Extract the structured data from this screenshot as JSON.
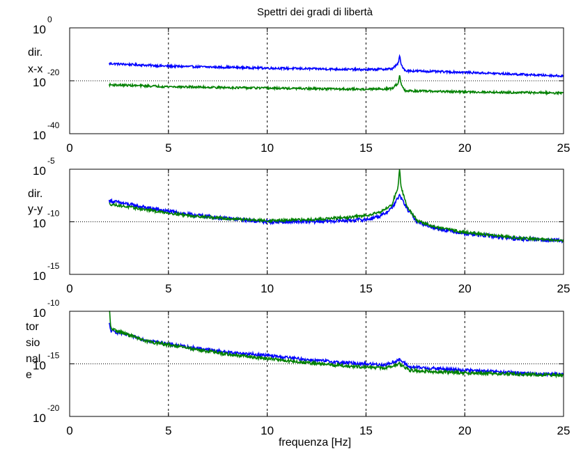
{
  "chart_data": {
    "title": "Spettri dei gradi di libertà",
    "xlabel": "frequenza [Hz]",
    "colors": {
      "blue": "#0000ff",
      "green": "#008000",
      "axes": "#000000"
    },
    "panels": [
      {
        "type": "line",
        "yscale": "log",
        "ylabel_lines": [
          "dir.",
          "x-x"
        ],
        "xlim": [
          0,
          25
        ],
        "xticks": [
          "0",
          "5",
          "10",
          "15",
          "20",
          "25"
        ],
        "ylim_exp": [
          -40,
          0
        ],
        "yticks": [
          {
            "base": "10",
            "exp": "0"
          },
          {
            "base": "10",
            "exp": "-20"
          },
          {
            "base": "10",
            "exp": "-40"
          }
        ],
        "vertical_grid_x": [
          5,
          10,
          15,
          20
        ],
        "horizontal_grid_exp": [
          -20
        ],
        "series": [
          {
            "color": "blue",
            "noise": 0.8,
            "peak_height": 2.5,
            "points": [
              [
                2,
                -13.5
              ],
              [
                5,
                -14.5
              ],
              [
                10,
                -15.2
              ],
              [
                15,
                -15.8
              ],
              [
                16.3,
                -15.5
              ],
              [
                16.7,
                -13.2
              ],
              [
                17.0,
                -16.2
              ],
              [
                20,
                -16.8
              ],
              [
                25,
                -18.2
              ]
            ]
          },
          {
            "color": "green",
            "noise": 0.8,
            "peak_height": 2.5,
            "points": [
              [
                2,
                -21.5
              ],
              [
                5,
                -22.2
              ],
              [
                10,
                -22.8
              ],
              [
                15,
                -23.2
              ],
              [
                16.3,
                -23.0
              ],
              [
                16.7,
                -20.5
              ],
              [
                17.0,
                -23.8
              ],
              [
                20,
                -24.2
              ],
              [
                25,
                -24.6
              ]
            ]
          }
        ]
      },
      {
        "type": "line",
        "yscale": "log",
        "ylabel_lines": [
          "dir.",
          "y-y"
        ],
        "xlim": [
          0,
          25
        ],
        "xticks": [
          "0",
          "5",
          "10",
          "15",
          "20",
          "25"
        ],
        "ylim_exp": [
          -15,
          -5
        ],
        "yticks": [
          {
            "base": "10",
            "exp": "-5"
          },
          {
            "base": "10",
            "exp": "-10"
          },
          {
            "base": "10",
            "exp": "-15"
          }
        ],
        "vertical_grid_x": [
          5,
          10,
          15,
          20
        ],
        "horizontal_grid_exp": [
          -10
        ],
        "series": [
          {
            "color": "blue",
            "noise": 0.35,
            "peak_height": 0,
            "points": [
              [
                2,
                -8.0
              ],
              [
                4,
                -8.7
              ],
              [
                6,
                -9.3
              ],
              [
                8,
                -9.7
              ],
              [
                10,
                -10.0
              ],
              [
                12,
                -10.0
              ],
              [
                13.5,
                -9.9
              ],
              [
                15,
                -9.8
              ],
              [
                15.8,
                -9.4
              ],
              [
                16.3,
                -8.7
              ],
              [
                16.7,
                -7.5
              ],
              [
                17.1,
                -8.8
              ],
              [
                17.6,
                -10.0
              ],
              [
                18.5,
                -10.6
              ],
              [
                20,
                -11.1
              ],
              [
                22.5,
                -11.6
              ],
              [
                25,
                -11.8
              ]
            ]
          },
          {
            "color": "green",
            "noise": 0.25,
            "peak_height": 1.3,
            "points": [
              [
                2,
                -8.3
              ],
              [
                4,
                -8.9
              ],
              [
                6,
                -9.4
              ],
              [
                8,
                -9.7
              ],
              [
                10,
                -9.9
              ],
              [
                12,
                -9.8
              ],
              [
                14,
                -9.6
              ],
              [
                15,
                -9.4
              ],
              [
                15.8,
                -9.0
              ],
              [
                16.3,
                -8.4
              ],
              [
                16.7,
                -6.3
              ],
              [
                17.1,
                -8.6
              ],
              [
                17.6,
                -9.9
              ],
              [
                18.5,
                -10.5
              ],
              [
                20,
                -11.0
              ],
              [
                22.5,
                -11.5
              ],
              [
                25,
                -11.8
              ]
            ]
          }
        ]
      },
      {
        "type": "line",
        "yscale": "log",
        "ylabel_lines": [
          "tor",
          "sio",
          "nal",
          "e"
        ],
        "xlim": [
          0,
          25
        ],
        "xticks": [
          "0",
          "5",
          "10",
          "15",
          "20",
          "25"
        ],
        "ylim_exp": [
          -20,
          -10
        ],
        "yticks": [
          {
            "base": "10",
            "exp": "-10"
          },
          {
            "base": "10",
            "exp": "-15"
          },
          {
            "base": "10",
            "exp": "-20"
          }
        ],
        "vertical_grid_x": [
          5,
          10,
          15,
          20
        ],
        "horizontal_grid_exp": [
          -15
        ],
        "series": [
          {
            "color": "blue",
            "noise": 0.3,
            "peak_height": 0.6,
            "points": [
              [
                2,
                -11.8
              ],
              [
                4,
                -12.8
              ],
              [
                6,
                -13.4
              ],
              [
                8,
                -13.9
              ],
              [
                10,
                -14.2
              ],
              [
                12,
                -14.6
              ],
              [
                14,
                -14.9
              ],
              [
                16,
                -15.1
              ],
              [
                16.7,
                -14.6
              ],
              [
                17.2,
                -15.3
              ],
              [
                19,
                -15.5
              ],
              [
                21,
                -15.7
              ],
              [
                23,
                -15.9
              ],
              [
                25,
                -16.0
              ]
            ]
          },
          {
            "color": "green",
            "noise": 0.3,
            "peak_height": 2.1,
            "points": [
              [
                2,
                -11.6
              ],
              [
                4,
                -12.9
              ],
              [
                6,
                -13.5
              ],
              [
                8,
                -14.1
              ],
              [
                10,
                -14.5
              ],
              [
                12,
                -14.9
              ],
              [
                14,
                -15.2
              ],
              [
                16,
                -15.4
              ],
              [
                16.7,
                -15.0
              ],
              [
                17.2,
                -15.6
              ],
              [
                19,
                -15.8
              ],
              [
                21,
                -15.9
              ],
              [
                23,
                -16.0
              ],
              [
                25,
                -16.1
              ]
            ]
          }
        ]
      }
    ]
  }
}
